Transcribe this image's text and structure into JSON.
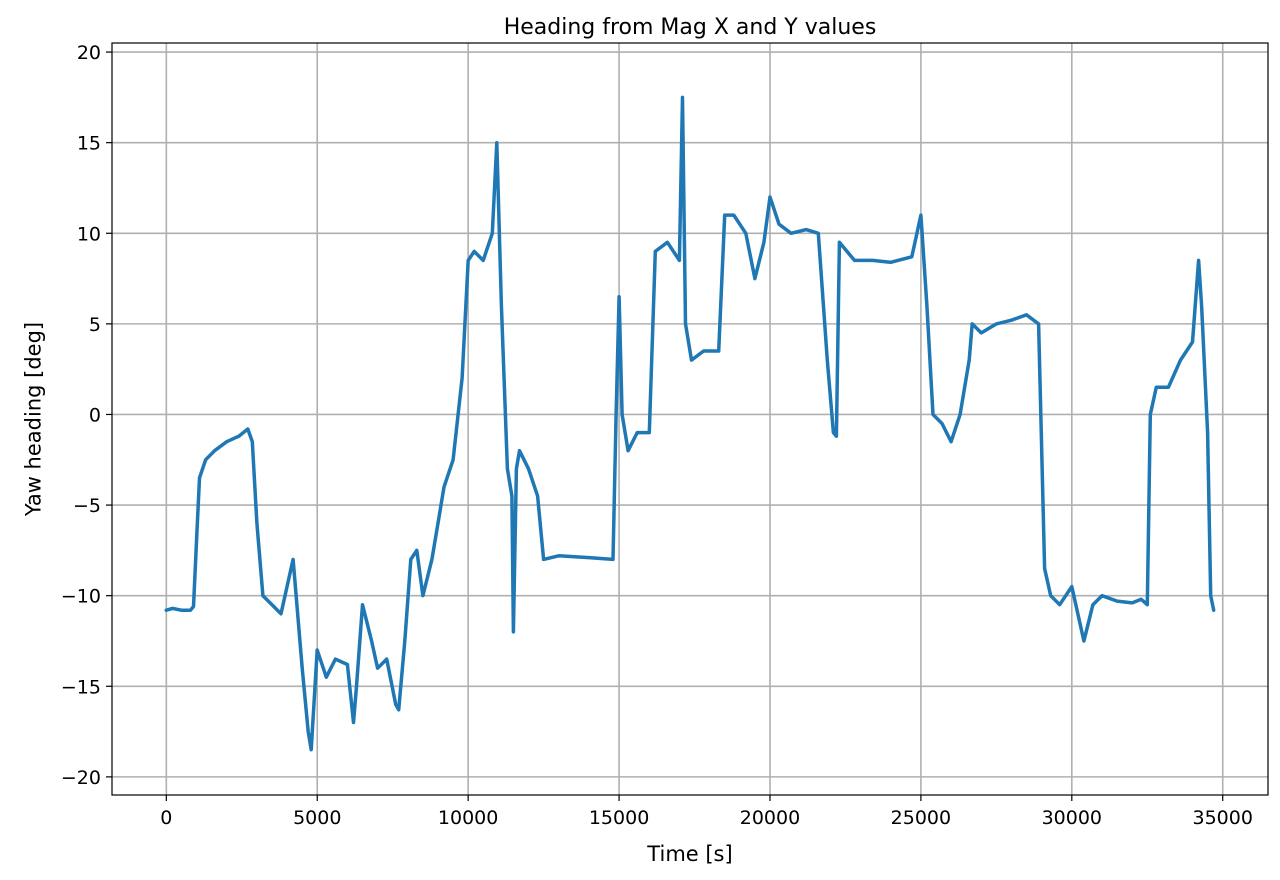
{
  "chart_data": {
    "type": "line",
    "title": "Heading from Mag X and Y values",
    "xlabel": "Time [s]",
    "ylabel": "Yaw heading [deg]",
    "xlim": [
      -1800,
      36500
    ],
    "ylim": [
      -21,
      20.5
    ],
    "xticks": [
      0,
      5000,
      10000,
      15000,
      20000,
      25000,
      30000,
      35000
    ],
    "xtick_labels": [
      "0",
      "5000",
      "10000",
      "15000",
      "20000",
      "25000",
      "30000",
      "35000"
    ],
    "yticks": [
      -20,
      -15,
      -10,
      -5,
      0,
      5,
      10,
      15,
      20
    ],
    "ytick_labels": [
      "−20",
      "−15",
      "−10",
      "−5",
      "0",
      "5",
      "10",
      "15",
      "20"
    ],
    "grid": true,
    "series": [
      {
        "color": "#1f77b4",
        "x": [
          0,
          200,
          500,
          800,
          900,
          1000,
          1100,
          1300,
          1600,
          2000,
          2400,
          2700,
          2850,
          3000,
          3200,
          3500,
          3800,
          4200,
          4500,
          4700,
          4800,
          5000,
          5300,
          5600,
          6000,
          6200,
          6300,
          6500,
          6800,
          7000,
          7300,
          7600,
          7700,
          7900,
          8100,
          8300,
          8500,
          8800,
          9000,
          9200,
          9500,
          9800,
          10000,
          10200,
          10500,
          10800,
          10950,
          11100,
          11300,
          11450,
          11500,
          11600,
          11700,
          12000,
          12300,
          12500,
          13000,
          14000,
          14800,
          14900,
          15000,
          15100,
          15300,
          15600,
          16000,
          16200,
          16600,
          17000,
          17100,
          17200,
          17400,
          17800,
          18300,
          18500,
          18800,
          19200,
          19500,
          19800,
          20000,
          20300,
          20700,
          21200,
          21600,
          21900,
          22100,
          22200,
          22300,
          22800,
          23400,
          24000,
          24700,
          25000,
          25200,
          25400,
          25700,
          26000,
          26300,
          26600,
          26700,
          27000,
          27500,
          28000,
          28500,
          28900,
          29100,
          29300,
          29600,
          30000,
          30400,
          30700,
          31000,
          31500,
          32000,
          32300,
          32500,
          32600,
          32800,
          33200,
          33600,
          34000,
          34200,
          34300,
          34500,
          34600,
          34700
        ],
        "values": [
          -10.8,
          -10.7,
          -10.8,
          -10.8,
          -10.6,
          -7,
          -3.5,
          -2.5,
          -2,
          -1.5,
          -1.2,
          -0.8,
          -1.5,
          -6,
          -10,
          -10.5,
          -11,
          -8,
          -14,
          -17.5,
          -18.5,
          -13,
          -14.5,
          -13.5,
          -13.8,
          -17,
          -15,
          -10.5,
          -12.5,
          -14,
          -13.5,
          -16,
          -16.3,
          -12.5,
          -8,
          -7.5,
          -10,
          -8,
          -6,
          -4,
          -2.5,
          2,
          8.5,
          9,
          8.5,
          10,
          15,
          6,
          -3,
          -4.5,
          -12,
          -3,
          -2,
          -3,
          -4.5,
          -8,
          -7.8,
          -7.9,
          -8,
          0,
          6.5,
          0,
          -2,
          -1,
          -1,
          9,
          9.5,
          8.5,
          17.5,
          5,
          3,
          3.5,
          3.5,
          11,
          11,
          10,
          7.5,
          9.5,
          12,
          10.5,
          10,
          10.2,
          10,
          3,
          -1,
          -1.2,
          9.5,
          8.5,
          8.5,
          8.4,
          8.7,
          11,
          6,
          0,
          -0.5,
          -1.5,
          0,
          3,
          5,
          4.5,
          5,
          5.2,
          5.5,
          5,
          -8.5,
          -10,
          -10.5,
          -9.5,
          -12.5,
          -10.5,
          -10,
          -10.3,
          -10.4,
          -10.2,
          -10.5,
          0,
          1.5,
          1.5,
          3,
          4,
          8.5,
          6,
          -1,
          -10,
          -10.8
        ]
      }
    ]
  }
}
